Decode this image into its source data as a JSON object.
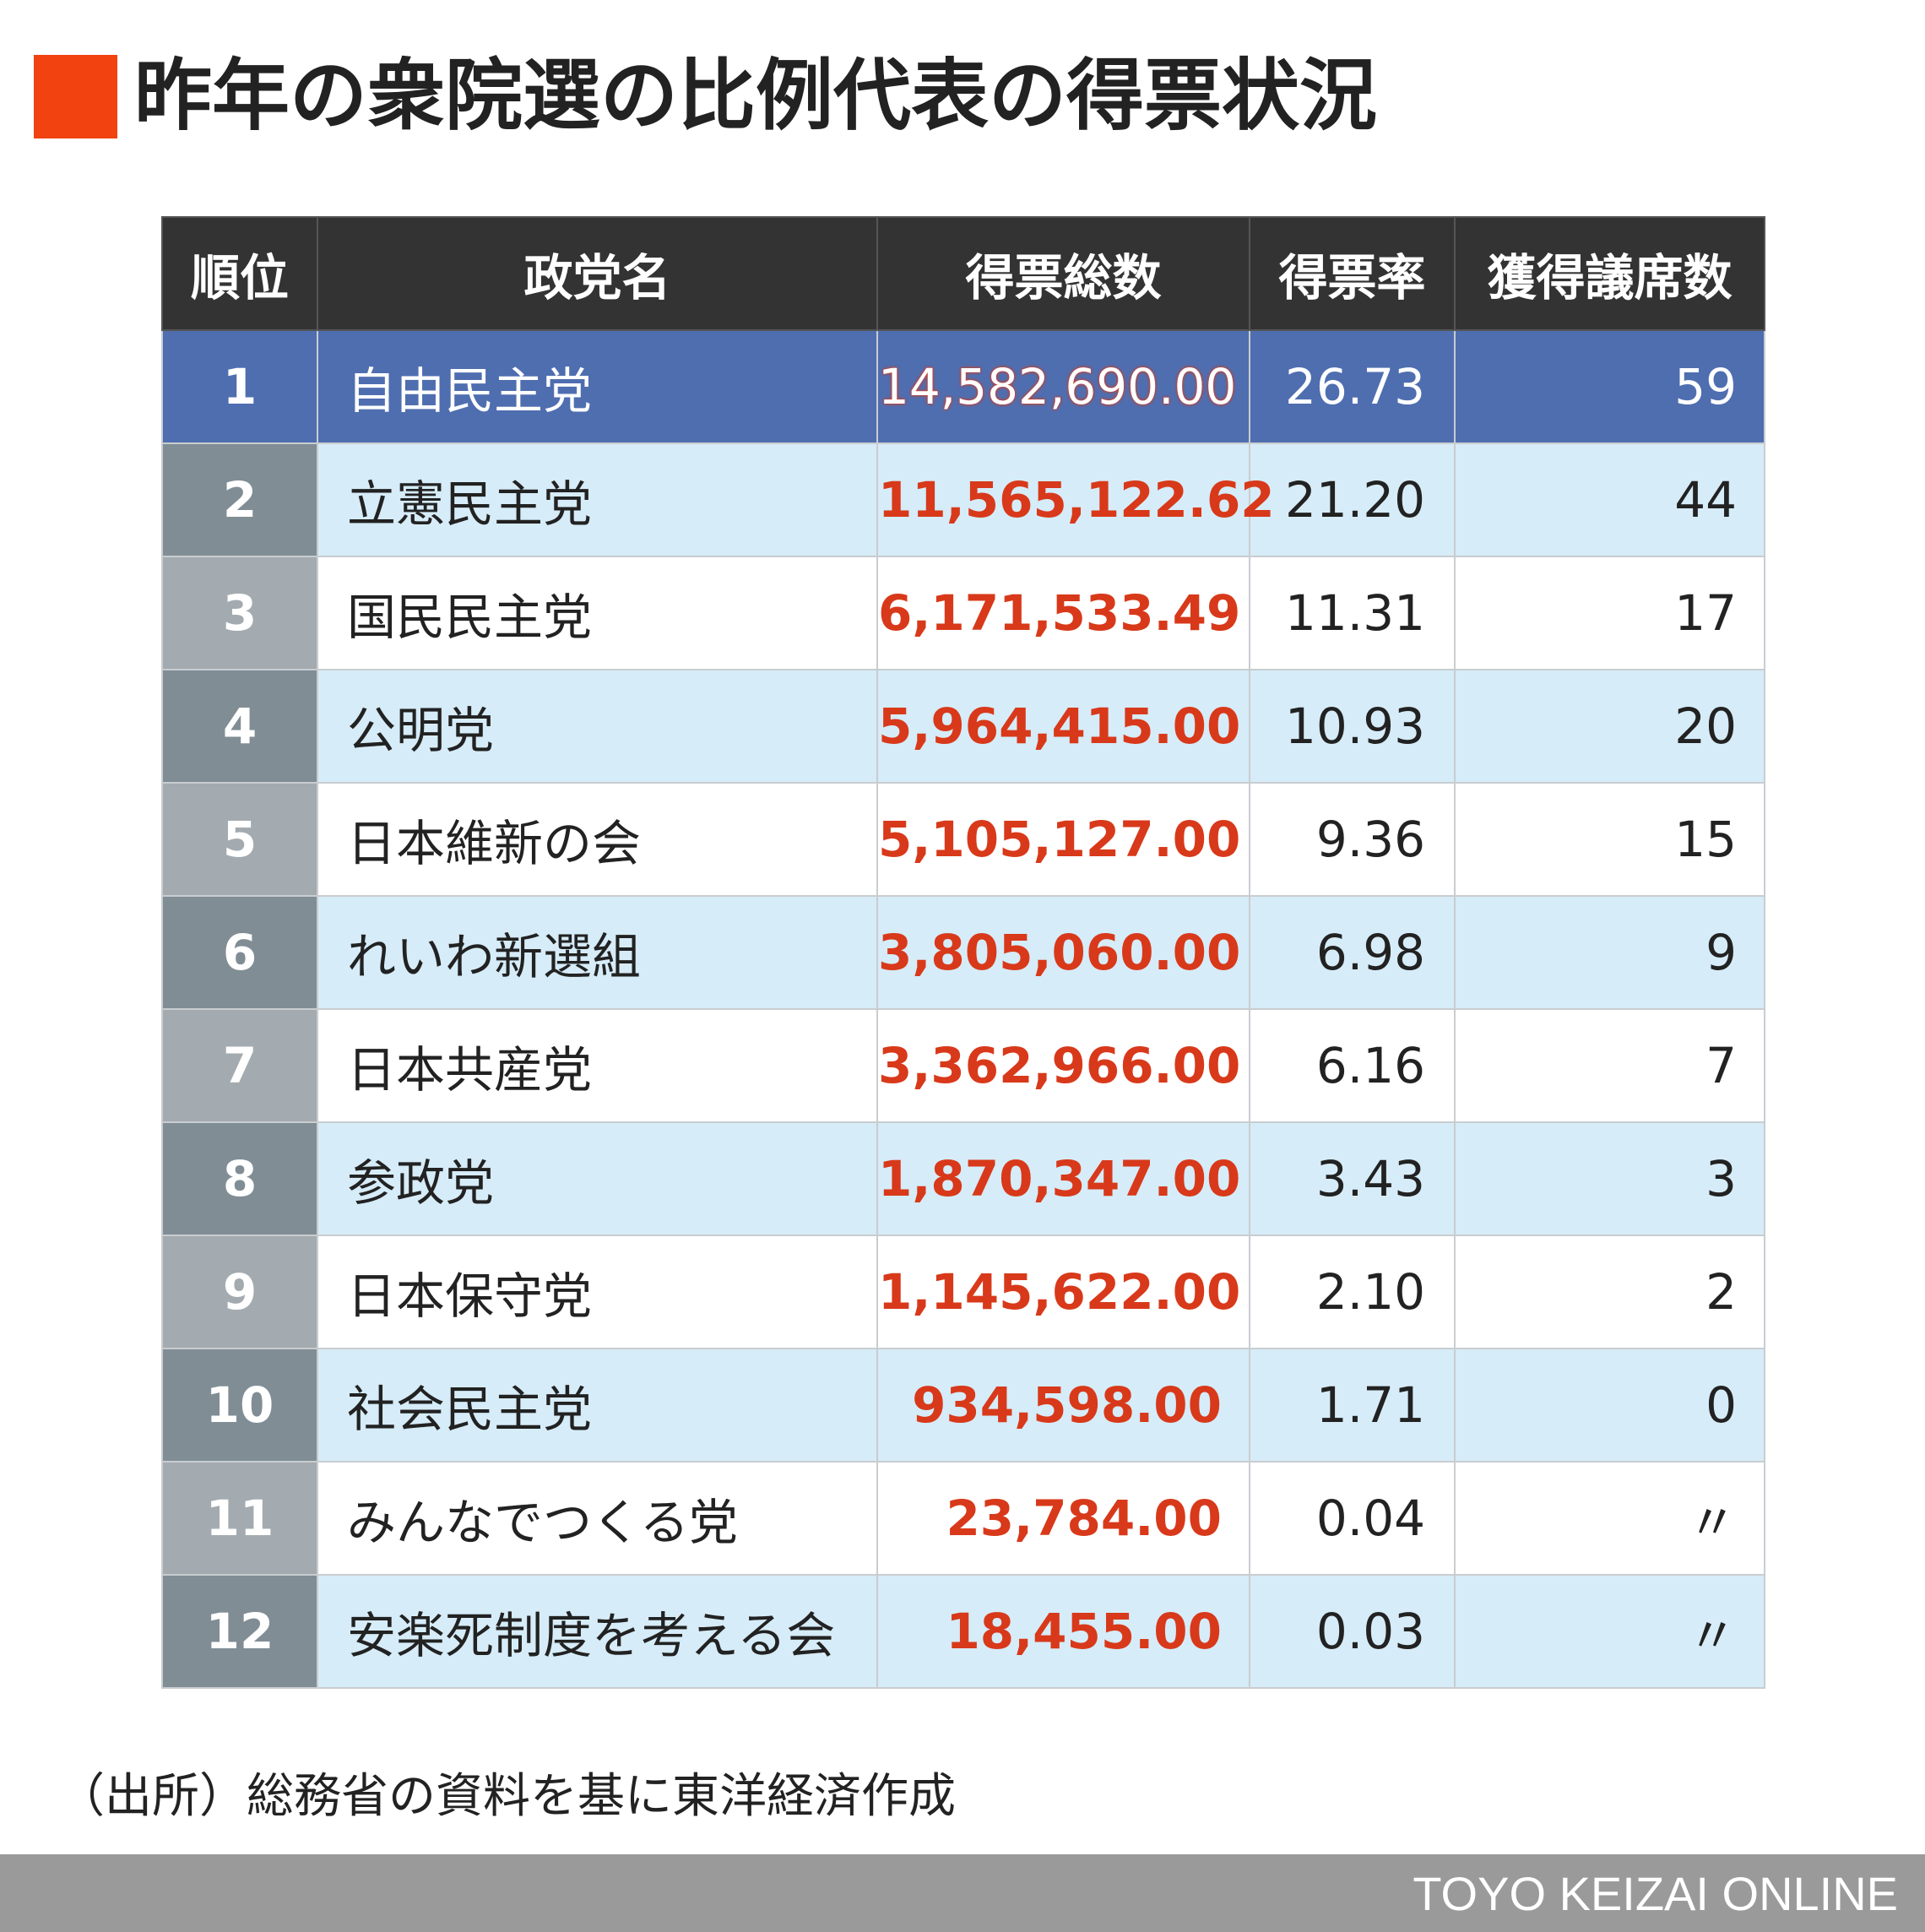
{
  "title": "昨年の衆院選の比例代表の得票状況",
  "accent_color": "#f2420f",
  "chart_data": {
    "type": "table",
    "columns": [
      "順位",
      "政党名",
      "得票総数",
      "得票率",
      "獲得議席数"
    ],
    "rows": [
      [
        "1",
        "自由民主党",
        "14,582,690.00",
        "26.73",
        "59"
      ],
      [
        "2",
        "立憲民主党",
        "11,565,122.62",
        "21.20",
        "44"
      ],
      [
        "3",
        "国民民主党",
        "6,171,533.49",
        "11.31",
        "17"
      ],
      [
        "4",
        "公明党",
        "5,964,415.00",
        "10.93",
        "20"
      ],
      [
        "5",
        "日本維新の会",
        "5,105,127.00",
        "9.36",
        "15"
      ],
      [
        "6",
        "れいわ新選組",
        "3,805,060.00",
        "6.98",
        "9"
      ],
      [
        "7",
        "日本共産党",
        "3,362,966.00",
        "6.16",
        "7"
      ],
      [
        "8",
        "参政党",
        "1,870,347.00",
        "3.43",
        "3"
      ],
      [
        "9",
        "日本保守党",
        "1,145,622.00",
        "2.10",
        "2"
      ],
      [
        "10",
        "社会民主党",
        "934,598.00",
        "1.71",
        "0"
      ],
      [
        "11",
        "みんなでつくる党",
        "23,784.00",
        "0.04",
        "〃"
      ],
      [
        "12",
        "安楽死制度を考える会",
        "18,455.00",
        "0.03",
        "〃"
      ]
    ]
  },
  "source": "（出所）総務省の資料を基に東洋経済作成",
  "footer": {
    "brand": "TOYO KEIZAI ONLINE"
  }
}
